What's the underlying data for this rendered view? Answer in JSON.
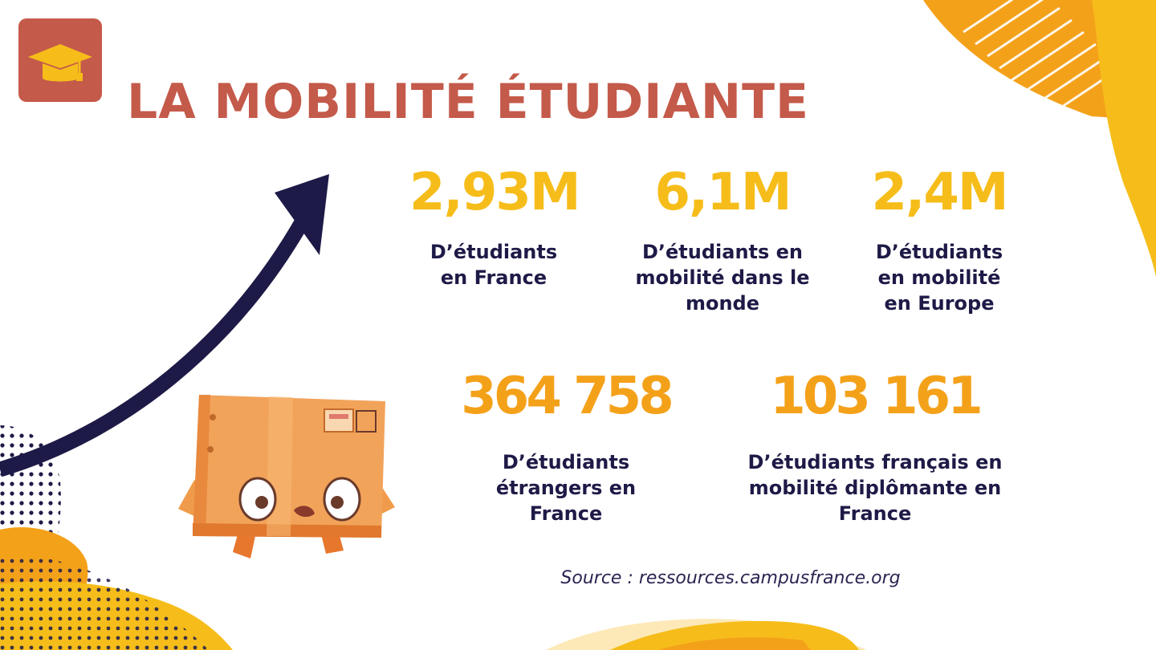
{
  "title": "LA MOBILITÉ ÉTUDIANTE",
  "logo_icon": "graduation-cap-icon",
  "colors": {
    "title": "#c45a4a",
    "numbers_yellow": "#f6bd1a",
    "numbers_orange": "#f4a11a",
    "labels": "#1e1a47",
    "arrow": "#1e1a47"
  },
  "stats": [
    {
      "value": "2,93M",
      "label": "D’étudiants en France"
    },
    {
      "value": "6,1M",
      "label": "D’étudiants en mobilité dans le monde"
    },
    {
      "value": "2,4M",
      "label": "D’étudiants en mobilité en Europe"
    },
    {
      "value": "364 758",
      "label": "D’étudiants étrangers en France"
    },
    {
      "value": "103 161",
      "label": "D’étudiants français en mobilité diplômante en France"
    }
  ],
  "source": "Source : ressources.campusfrance.org",
  "illustration": "cardboard-box-character"
}
